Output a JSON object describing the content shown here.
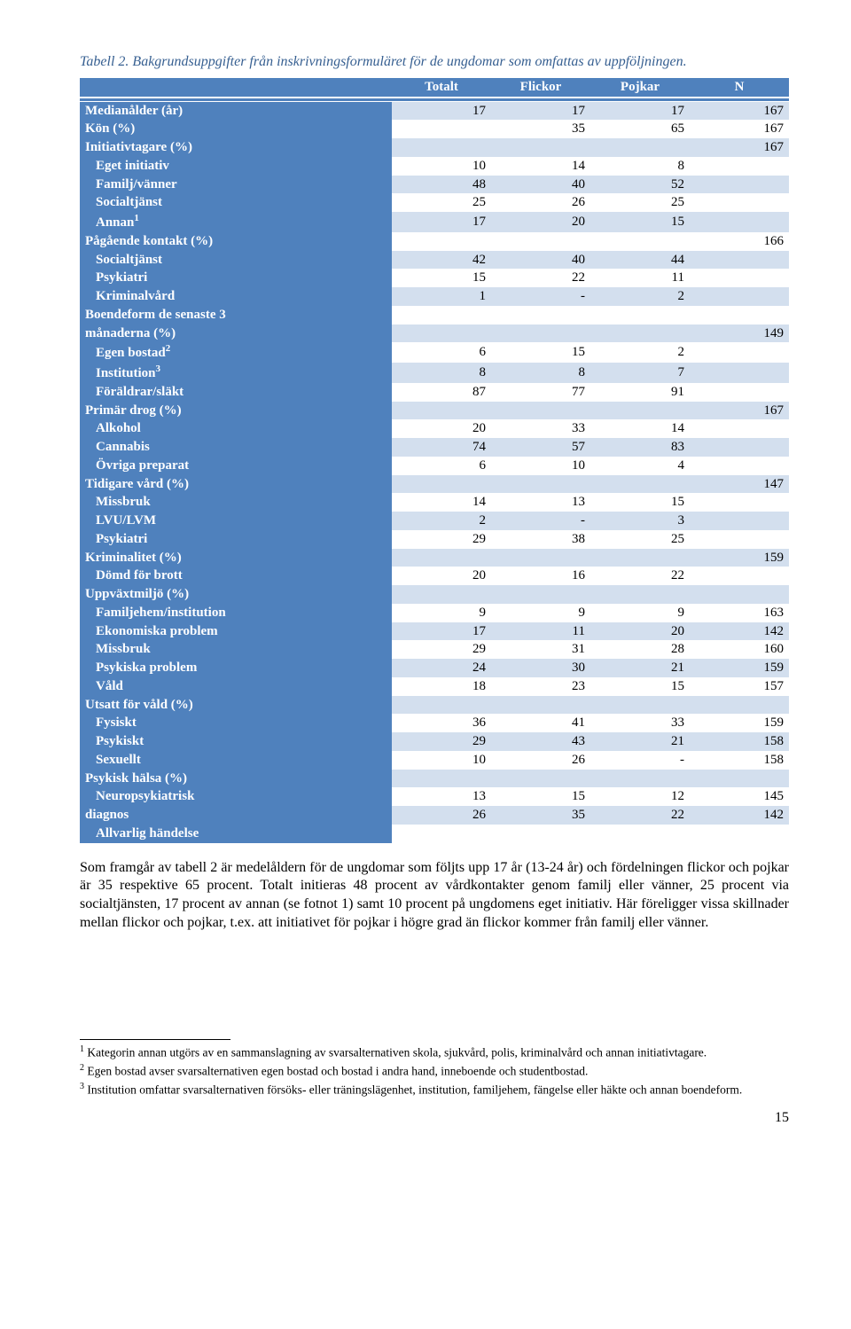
{
  "caption": "Tabell 2. Bakgrundsuppgifter från inskrivningsformuläret för de ungdomar som omfattas av uppföljningen.",
  "colors": {
    "header_bg": "#4f81bd",
    "header_fg": "#ffffff",
    "band_odd": "#d3dfee",
    "band_even": "#ffffff",
    "caption_color": "#365f91"
  },
  "table": {
    "columns": [
      "Totalt",
      "Flickor",
      "Pojkar",
      "N"
    ],
    "rows": [
      {
        "label": "Medianålder (år)",
        "indent": 0,
        "vals": [
          "17",
          "17",
          "17",
          "167"
        ]
      },
      {
        "label": "Kön (%)",
        "indent": 0,
        "vals": [
          "",
          "35",
          "65",
          "167"
        ]
      },
      {
        "label": "Initiativtagare (%)",
        "indent": 0,
        "vals": [
          "",
          "",
          "",
          "167"
        ]
      },
      {
        "label": "Eget initiativ",
        "indent": 1,
        "vals": [
          "10",
          "14",
          "8",
          ""
        ]
      },
      {
        "label": "Familj/vänner",
        "indent": 1,
        "vals": [
          "48",
          "40",
          "52",
          ""
        ]
      },
      {
        "label": "Socialtjänst",
        "indent": 1,
        "vals": [
          "25",
          "26",
          "25",
          ""
        ]
      },
      {
        "label": "Annan",
        "sup": "1",
        "indent": 1,
        "vals": [
          "17",
          "20",
          "15",
          ""
        ]
      },
      {
        "label": "Pågående kontakt (%)",
        "indent": 0,
        "vals": [
          "",
          "",
          "",
          "166"
        ]
      },
      {
        "label": "Socialtjänst",
        "indent": 1,
        "vals": [
          "42",
          "40",
          "44",
          ""
        ]
      },
      {
        "label": "Psykiatri",
        "indent": 1,
        "vals": [
          "15",
          "22",
          "11",
          ""
        ]
      },
      {
        "label": "Kriminalvård",
        "indent": 1,
        "vals": [
          "1",
          "-",
          "2",
          ""
        ]
      },
      {
        "label": "Boendeform de senaste 3",
        "indent": 0,
        "vals": [
          "",
          "",
          "",
          ""
        ]
      },
      {
        "label": "månaderna (%)",
        "indent": 0,
        "vals": [
          "",
          "",
          "",
          "149"
        ]
      },
      {
        "label": "Egen bostad",
        "sup": "2",
        "indent": 1,
        "vals": [
          "6",
          "15",
          "2",
          ""
        ]
      },
      {
        "label": "Institution",
        "sup": "3",
        "indent": 1,
        "vals": [
          "8",
          "8",
          "7",
          ""
        ]
      },
      {
        "label": "Föräldrar/släkt",
        "indent": 1,
        "vals": [
          "87",
          "77",
          "91",
          ""
        ]
      },
      {
        "label": "Primär drog (%)",
        "indent": 0,
        "vals": [
          "",
          "",
          "",
          "167"
        ]
      },
      {
        "label": "Alkohol",
        "indent": 1,
        "vals": [
          "20",
          "33",
          "14",
          ""
        ]
      },
      {
        "label": "Cannabis",
        "indent": 1,
        "vals": [
          "74",
          "57",
          "83",
          ""
        ]
      },
      {
        "label": "Övriga preparat",
        "indent": 1,
        "vals": [
          "6",
          "10",
          "4",
          ""
        ]
      },
      {
        "label": "Tidigare vård (%)",
        "indent": 0,
        "vals": [
          "",
          "",
          "",
          "147"
        ]
      },
      {
        "label": "Missbruk",
        "indent": 1,
        "vals": [
          "14",
          "13",
          "15",
          ""
        ]
      },
      {
        "label": "LVU/LVM",
        "indent": 1,
        "vals": [
          "2",
          "-",
          "3",
          ""
        ]
      },
      {
        "label": "Psykiatri",
        "indent": 1,
        "vals": [
          "29",
          "38",
          "25",
          ""
        ]
      },
      {
        "label": "Kriminalitet (%)",
        "indent": 0,
        "vals": [
          "",
          "",
          "",
          "159"
        ]
      },
      {
        "label": "Dömd för brott",
        "indent": 1,
        "vals": [
          "20",
          "16",
          "22",
          ""
        ]
      },
      {
        "label": "Uppväxtmiljö (%)",
        "indent": 0,
        "vals": [
          "",
          "",
          "",
          ""
        ]
      },
      {
        "label": "Familjehem/institution",
        "indent": 1,
        "vals": [
          "9",
          "9",
          "9",
          "163"
        ]
      },
      {
        "label": "Ekonomiska problem",
        "indent": 1,
        "vals": [
          "17",
          "11",
          "20",
          "142"
        ]
      },
      {
        "label": "Missbruk",
        "indent": 1,
        "vals": [
          "29",
          "31",
          "28",
          "160"
        ]
      },
      {
        "label": "Psykiska problem",
        "indent": 1,
        "vals": [
          "24",
          "30",
          "21",
          "159"
        ]
      },
      {
        "label": "Våld",
        "indent": 1,
        "vals": [
          "18",
          "23",
          "15",
          "157"
        ]
      },
      {
        "label": "Utsatt för våld (%)",
        "indent": 0,
        "vals": [
          "",
          "",
          "",
          ""
        ]
      },
      {
        "label": "Fysiskt",
        "indent": 1,
        "vals": [
          "36",
          "41",
          "33",
          "159"
        ]
      },
      {
        "label": "Psykiskt",
        "indent": 1,
        "vals": [
          "29",
          "43",
          "21",
          "158"
        ]
      },
      {
        "label": "Sexuellt",
        "indent": 1,
        "vals": [
          "10",
          "26",
          "-",
          "158"
        ]
      },
      {
        "label": "Psykisk hälsa (%)",
        "indent": 0,
        "vals": [
          "",
          "",
          "",
          ""
        ]
      },
      {
        "label": "Neuropsykiatrisk",
        "indent": 1,
        "vals": [
          "13",
          "15",
          "12",
          "145"
        ]
      },
      {
        "label": "diagnos",
        "indent": 0,
        "vals": [
          "26",
          "35",
          "22",
          "142"
        ]
      },
      {
        "label": "Allvarlig händelse",
        "indent": 1,
        "vals": [
          "",
          "",
          "",
          ""
        ]
      }
    ]
  },
  "paragraph": "Som framgår av tabell 2 är medelåldern för de ungdomar som följts upp 17 år (13-24 år) och fördelningen flickor och pojkar är 35 respektive 65 procent. Totalt initieras 48 procent av vårdkontakter genom familj eller vänner, 25 procent via socialtjänsten, 17 procent av annan (se fotnot 1) samt 10 procent på ungdomens eget initiativ. Här föreligger vissa skillnader mellan flickor och pojkar, t.ex. att initiativet för pojkar i högre grad än flickor kommer från familj eller vänner.",
  "footnotes": [
    {
      "num": "1",
      "text": "Kategorin annan utgörs av en sammanslagning av svarsalternativen skola, sjukvård, polis, kriminalvård och annan initiativtagare."
    },
    {
      "num": "2",
      "text": "Egen bostad avser svarsalternativen egen bostad och bostad i andra hand, inneboende och studentbostad."
    },
    {
      "num": "3",
      "text": "Institution omfattar svarsalternativen försöks- eller träningslägenhet, institution, familjehem, fängelse eller häkte och annan boendeform."
    }
  ],
  "page_number": "15"
}
